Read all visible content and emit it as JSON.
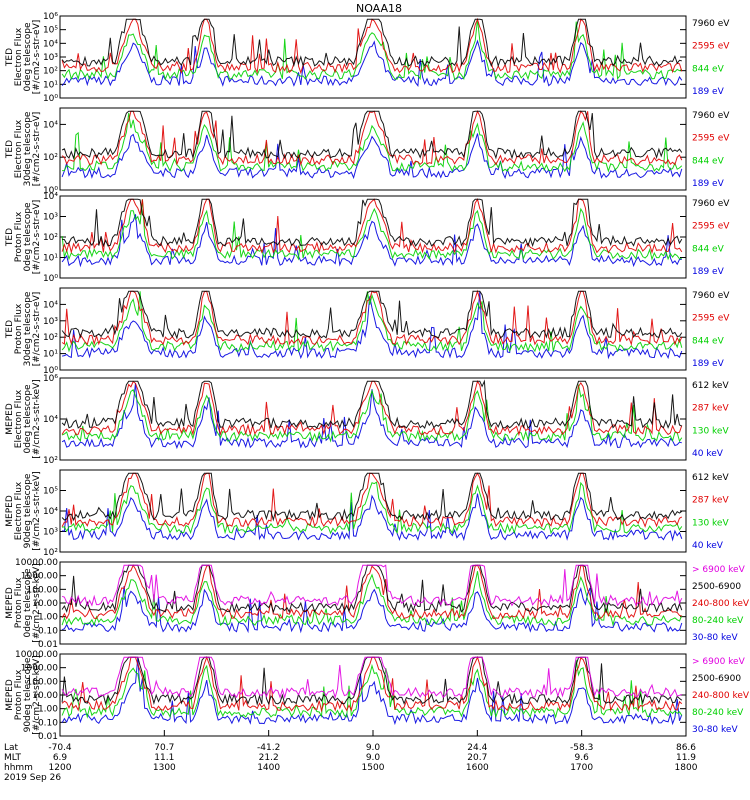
{
  "title": "NOAA18",
  "chart_data": [
    {
      "type": "line",
      "ylabel": [
        "TED",
        "Electron Flux",
        "0deg telescope",
        "[#/cm2-s-str-eV]"
      ],
      "y_log": true,
      "ylim": [
        1,
        1000000
      ],
      "yticks": [
        "10⁰",
        "10¹",
        "10²",
        "10³",
        "10⁴",
        "10⁵",
        "10⁶"
      ],
      "yticks_values": [
        1,
        10,
        100,
        1000,
        10000,
        100000,
        1000000
      ],
      "series": [
        {
          "name": "7960 eV",
          "color": "#000000"
        },
        {
          "name": "2595 eV",
          "color": "#e00000"
        },
        {
          "name": "844 eV",
          "color": "#00d000"
        },
        {
          "name": "189 eV",
          "color": "#0000e0"
        }
      ]
    },
    {
      "type": "line",
      "ylabel": [
        "TED",
        "Electron Flux",
        "30deg telescope",
        "[#/cm2-s-str-eV]"
      ],
      "y_log": true,
      "ylim": [
        1,
        100000
      ],
      "yticks": [
        "10⁰",
        "10²",
        "10⁴"
      ],
      "yticks_values": [
        1,
        100,
        10000
      ],
      "series": [
        {
          "name": "7960 eV",
          "color": "#000000"
        },
        {
          "name": "2595 eV",
          "color": "#e00000"
        },
        {
          "name": "844 eV",
          "color": "#00d000"
        },
        {
          "name": "189 eV",
          "color": "#0000e0"
        }
      ]
    },
    {
      "type": "line",
      "ylabel": [
        "TED",
        "Proton Flux",
        "0deg telescope",
        "[#/cm2-s-str-eV]"
      ],
      "y_log": true,
      "ylim": [
        1,
        10000
      ],
      "yticks": [
        "10⁰",
        "10¹",
        "10²",
        "10³",
        "10⁴"
      ],
      "yticks_values": [
        1,
        10,
        100,
        1000,
        10000
      ],
      "series": [
        {
          "name": "7960 eV",
          "color": "#000000"
        },
        {
          "name": "2595 eV",
          "color": "#e00000"
        },
        {
          "name": "844 eV",
          "color": "#00d000"
        },
        {
          "name": "189 eV",
          "color": "#0000e0"
        }
      ]
    },
    {
      "type": "line",
      "ylabel": [
        "TED",
        "Proton Flux",
        "30deg telescope",
        "[#/cm2-s-str-eV]"
      ],
      "y_log": true,
      "ylim": [
        1,
        100000
      ],
      "yticks": [
        "10⁰",
        "10¹",
        "10²",
        "10³",
        "10⁴"
      ],
      "yticks_values": [
        1,
        10,
        100,
        1000,
        10000
      ],
      "series": [
        {
          "name": "7960 eV",
          "color": "#000000"
        },
        {
          "name": "2595 eV",
          "color": "#e00000"
        },
        {
          "name": "844 eV",
          "color": "#00d000"
        },
        {
          "name": "189 eV",
          "color": "#0000e0"
        }
      ]
    },
    {
      "type": "line",
      "ylabel": [
        "MEPED",
        "Electron Flux",
        "0deg telescope",
        "[#/cm2-s-str-keV]"
      ],
      "y_log": true,
      "ylim": [
        100,
        1000000
      ],
      "yticks": [
        "10²",
        "10⁴",
        "10⁶"
      ],
      "yticks_values": [
        100,
        10000,
        1000000
      ],
      "series": [
        {
          "name": "612 keV",
          "color": "#000000"
        },
        {
          "name": "287 keV",
          "color": "#e00000"
        },
        {
          "name": "130 keV",
          "color": "#00d000"
        },
        {
          "name": "40 keV",
          "color": "#0000e0"
        }
      ]
    },
    {
      "type": "line",
      "ylabel": [
        "MEPED",
        "Electron Flux",
        "90deg telescope",
        "[#/cm2-s-str-keV]"
      ],
      "y_log": true,
      "ylim": [
        100,
        1000000
      ],
      "yticks": [
        "10²",
        "10³",
        "10⁴",
        "10⁵"
      ],
      "yticks_values": [
        100,
        1000,
        10000,
        100000
      ],
      "series": [
        {
          "name": "612 keV",
          "color": "#000000"
        },
        {
          "name": "287 keV",
          "color": "#e00000"
        },
        {
          "name": "130 keV",
          "color": "#00d000"
        },
        {
          "name": "40 keV",
          "color": "#0000e0"
        }
      ]
    },
    {
      "type": "line",
      "ylabel": [
        "MEPED",
        "Proton Flux",
        "0deg telescope",
        "[#/cm2-s-str-keV]"
      ],
      "y_log": true,
      "ylim": [
        0.01,
        10000
      ],
      "yticks": [
        "0.01",
        "0.10",
        "1.00",
        "10.00",
        "100.00",
        "1000.00",
        "10000.00"
      ],
      "yticks_values": [
        0.01,
        0.1,
        1,
        10,
        100,
        1000,
        10000
      ],
      "series": [
        {
          "name": "> 6900 keV",
          "color": "#e000e0"
        },
        {
          "name": "2500-6900",
          "color": "#000000"
        },
        {
          "name": "240-800 keV",
          "color": "#e00000"
        },
        {
          "name": "80-240 keV",
          "color": "#00d000"
        },
        {
          "name": "30-80 keV",
          "color": "#0000e0"
        }
      ]
    },
    {
      "type": "line",
      "ylabel": [
        "MEPED",
        "Proton Flux",
        "90deg telescope",
        "[#/cm2-s-str-keV]"
      ],
      "y_log": true,
      "ylim": [
        0.01,
        10000
      ],
      "yticks": [
        "0.01",
        "0.10",
        "1.00",
        "10.00",
        "100.00",
        "1000.00",
        "10000.00"
      ],
      "yticks_values": [
        0.01,
        0.1,
        1,
        10,
        100,
        1000,
        10000
      ],
      "series": [
        {
          "name": "> 6900 keV",
          "color": "#e000e0"
        },
        {
          "name": "2500-6900",
          "color": "#000000"
        },
        {
          "name": "240-800 keV",
          "color": "#e00000"
        },
        {
          "name": "80-240 keV",
          "color": "#00d000"
        },
        {
          "name": "30-80 keV",
          "color": "#0000e0"
        }
      ]
    }
  ],
  "x_axis": {
    "row_labels": [
      "Lat",
      "MLT",
      "hhmm"
    ],
    "xlim": [
      1200,
      1800
    ],
    "ticks": [
      {
        "t": 1200,
        "lat": "-70.4",
        "mlt": "6.9",
        "hhmm": "1200"
      },
      {
        "t": 1300,
        "lat": "70.7",
        "mlt": "11.1",
        "hhmm": "1300"
      },
      {
        "t": 1400,
        "lat": "-41.2",
        "mlt": "21.2",
        "hhmm": "1400"
      },
      {
        "t": 1500,
        "lat": "9.0",
        "mlt": "9.0",
        "hhmm": "1500"
      },
      {
        "t": 1600,
        "lat": "24.4",
        "mlt": "20.7",
        "hhmm": "1600"
      },
      {
        "t": 1700,
        "lat": "-58.3",
        "mlt": "9.6",
        "hhmm": "1700"
      },
      {
        "t": 1800,
        "lat": "86.6",
        "mlt": "11.9",
        "hhmm": "1800"
      }
    ],
    "date": "2019 Sep 26"
  }
}
